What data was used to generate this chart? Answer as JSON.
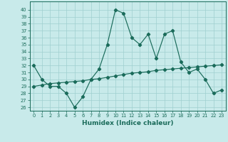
{
  "title": "",
  "xlabel": "Humidex (Indice chaleur)",
  "x": [
    0,
    1,
    2,
    3,
    4,
    5,
    6,
    7,
    8,
    9,
    10,
    11,
    12,
    13,
    14,
    15,
    16,
    17,
    18,
    19,
    20,
    21,
    22,
    23
  ],
  "y_curve": [
    32,
    30,
    29,
    29,
    28,
    26,
    27.5,
    30,
    31.5,
    35,
    40,
    39.5,
    36,
    35,
    36.5,
    33,
    36.5,
    37,
    32.5,
    31,
    31.5,
    30,
    28,
    28.5
  ],
  "y_linear": [
    29.0,
    29.2,
    29.4,
    29.5,
    29.6,
    29.7,
    29.8,
    30.0,
    30.1,
    30.3,
    30.5,
    30.7,
    30.9,
    31.0,
    31.1,
    31.3,
    31.4,
    31.5,
    31.6,
    31.7,
    31.8,
    31.9,
    32.0,
    32.1
  ],
  "line_color": "#1a6b5a",
  "bg_color": "#c8eaea",
  "grid_color": "#9fcfcf",
  "yticks": [
    26,
    27,
    28,
    29,
    30,
    31,
    32,
    33,
    34,
    35,
    36,
    37,
    38,
    39,
    40
  ],
  "xticks": [
    0,
    1,
    2,
    3,
    4,
    5,
    6,
    7,
    8,
    9,
    10,
    11,
    12,
    13,
    14,
    15,
    16,
    17,
    18,
    19,
    20,
    21,
    22,
    23
  ],
  "ylim": [
    25.5,
    41.2
  ],
  "xlim": [
    -0.5,
    23.5
  ],
  "xlabel_fontsize": 6.5,
  "tick_fontsize": 4.8,
  "marker_size": 2.2,
  "linewidth": 0.85
}
